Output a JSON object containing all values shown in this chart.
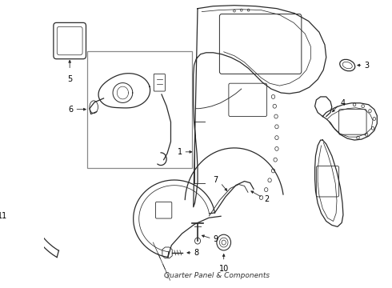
{
  "title": "Quarter Panel & Components",
  "background_color": "#ffffff",
  "line_color": "#2a2a2a",
  "label_color": "#000000",
  "figsize": [
    4.9,
    3.6
  ],
  "dpi": 100
}
